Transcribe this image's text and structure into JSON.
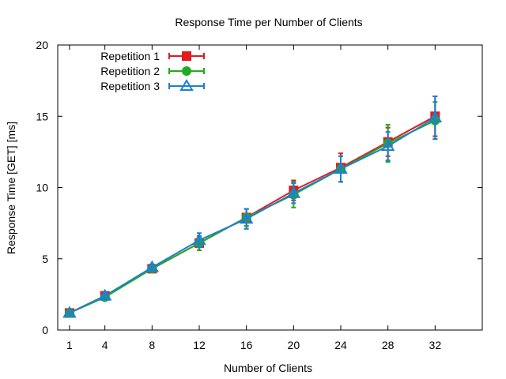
{
  "chart_data": {
    "type": "line",
    "title": "Response Time per Number of Clients",
    "xlabel": "Number of Clients",
    "ylabel": "Response Time [GET] [ms]",
    "xlim": [
      0,
      36
    ],
    "ylim": [
      0,
      20
    ],
    "x_ticks": [
      1,
      4,
      8,
      12,
      16,
      20,
      24,
      28,
      32
    ],
    "y_ticks": [
      0,
      5,
      10,
      15,
      20
    ],
    "grid": false,
    "legend_position": "top-left",
    "x": [
      1,
      4,
      8,
      12,
      16,
      20,
      24,
      28,
      32
    ],
    "series": [
      {
        "name": "Repetition 1",
        "color": "#e41a1c",
        "marker": "square",
        "values": [
          1.2,
          2.4,
          4.3,
          6.1,
          7.9,
          9.8,
          11.4,
          13.2,
          15.0
        ],
        "errors": [
          0.15,
          0.2,
          0.2,
          0.5,
          0.6,
          0.7,
          1.0,
          1.0,
          1.4
        ]
      },
      {
        "name": "Repetition 2",
        "color": "#22aa22",
        "marker": "circle",
        "values": [
          1.2,
          2.3,
          4.3,
          6.1,
          7.9,
          9.5,
          11.3,
          13.1,
          14.7
        ],
        "errors": [
          0.15,
          0.2,
          0.2,
          0.5,
          0.6,
          0.9,
          0.9,
          1.3,
          1.3
        ]
      },
      {
        "name": "Repetition 3",
        "color": "#1e7fd0",
        "marker": "triangle",
        "values": [
          1.2,
          2.4,
          4.4,
          6.3,
          7.8,
          9.6,
          11.3,
          12.9,
          14.9
        ],
        "errors": [
          0.15,
          0.2,
          0.2,
          0.5,
          0.7,
          0.7,
          0.9,
          1.0,
          1.5
        ]
      }
    ]
  }
}
